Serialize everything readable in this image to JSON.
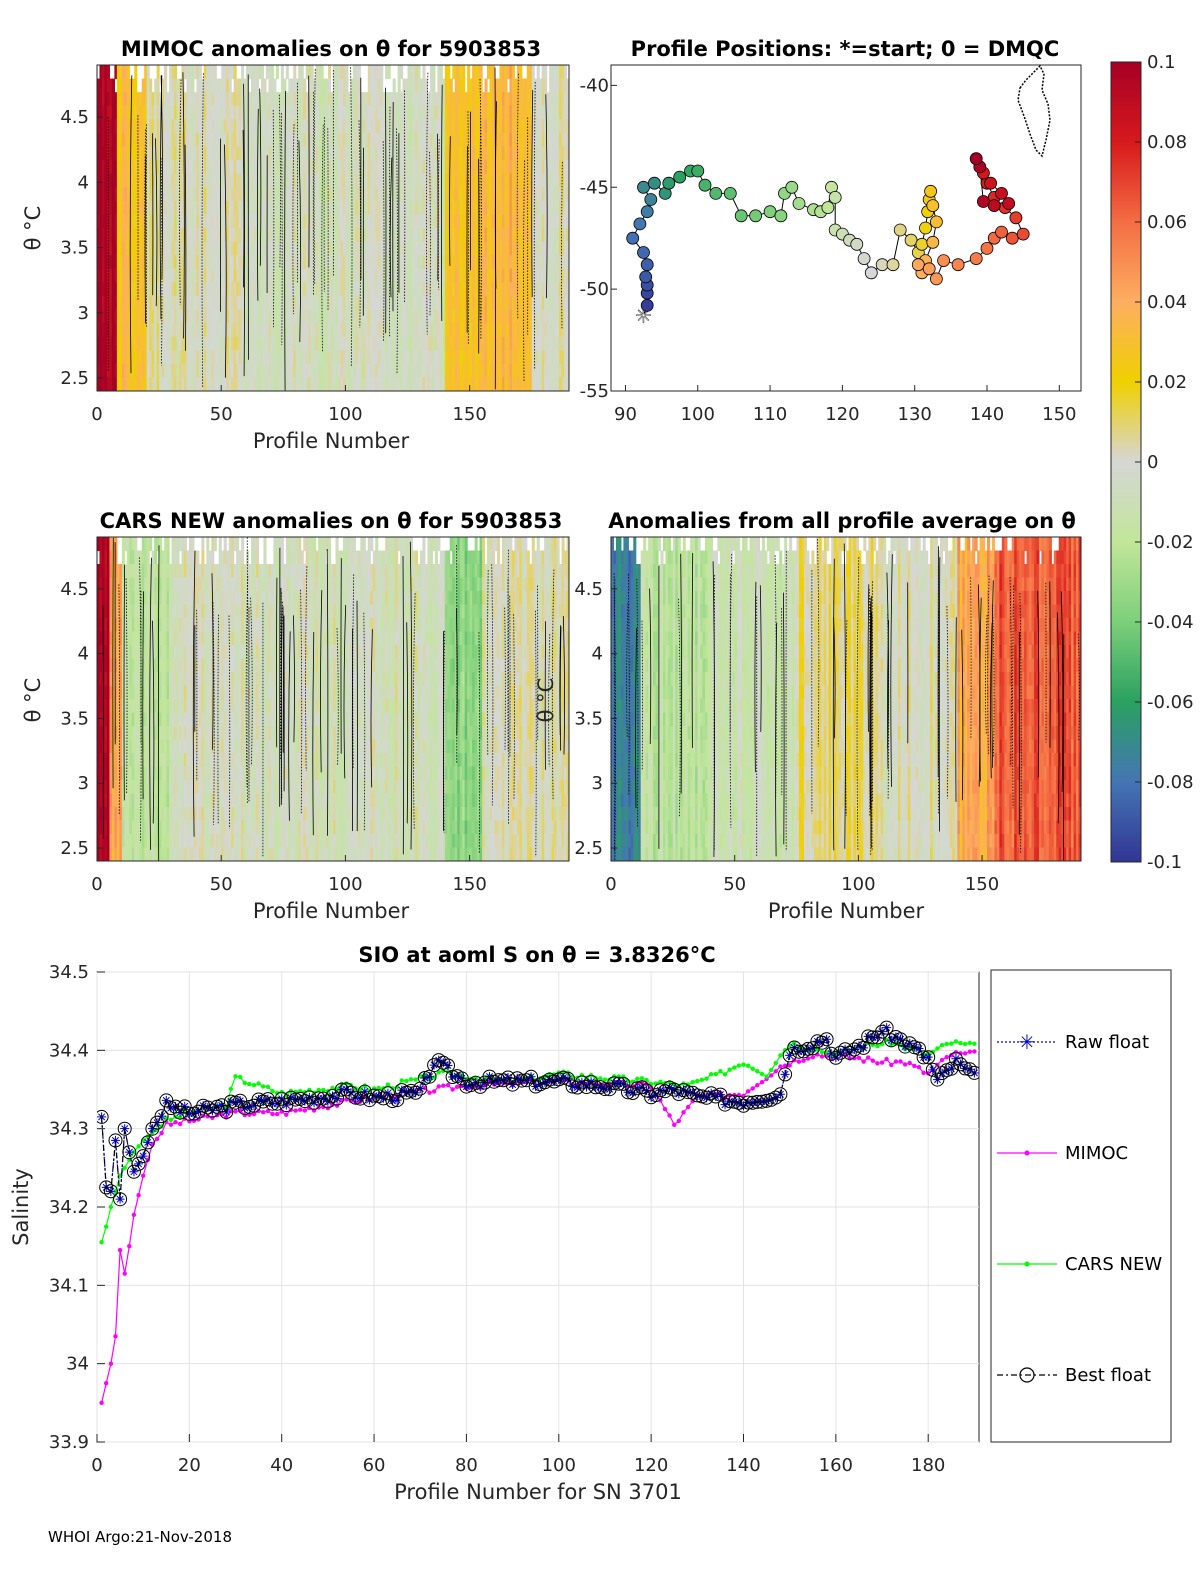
{
  "footer": "WHOI Argo:21-Nov-2018",
  "colors": {
    "raw": "#0000cc",
    "mimoc": "#ff00ff",
    "cars": "#00ff00",
    "best": "#000000",
    "zero": "#d6d6d6"
  },
  "colorbar": {
    "ticks": [
      "0.1",
      "0.08",
      "0.06",
      "0.04",
      "0.02",
      "0",
      "-0.02",
      "-0.04",
      "-0.06",
      "-0.08",
      "-0.1"
    ],
    "range": [
      -0.1,
      0.1
    ]
  },
  "chart_data": [
    {
      "id": "mimoc",
      "type": "heatmap",
      "title": "MIMOC anomalies on θ  for 5903853",
      "xlabel": "Profile Number",
      "ylabel": "θ °C",
      "xlim": [
        0,
        190
      ],
      "ylim": [
        2.4,
        4.9
      ],
      "xticks": [
        "0",
        "50",
        "100",
        "150"
      ],
      "yticks": [
        "2.5",
        "3",
        "3.5",
        "4",
        "4.5"
      ],
      "ytick_values": [
        2.5,
        3,
        3.5,
        4,
        4.5
      ],
      "xtick_values": [
        0,
        50,
        100,
        150
      ],
      "field": [
        {
          "from": 0,
          "to": 8,
          "value": 0.1
        },
        {
          "from": 8,
          "to": 20,
          "value": 0.03
        },
        {
          "from": 20,
          "to": 60,
          "value": 0.0
        },
        {
          "from": 60,
          "to": 140,
          "value": -0.005
        },
        {
          "from": 140,
          "to": 155,
          "value": 0.03
        },
        {
          "from": 155,
          "to": 175,
          "value": 0.035
        },
        {
          "from": 175,
          "to": 190,
          "value": 0.0
        }
      ]
    },
    {
      "id": "positions",
      "type": "scatter",
      "title": "Profile Positions: *=start; 0 = DMQC",
      "xlim": [
        88,
        153
      ],
      "ylim": [
        -55,
        -39
      ],
      "xticks": [
        "90",
        "100",
        "110",
        "120",
        "130",
        "140",
        "150"
      ],
      "xtick_values": [
        90,
        100,
        110,
        120,
        130,
        140,
        150
      ],
      "yticks": [
        "-40",
        "-45",
        "-50",
        "-55"
      ],
      "ytick_values": [
        -40,
        -45,
        -50,
        -55
      ],
      "track": [
        [
          92.5,
          -51.3
        ],
        [
          93,
          -50.8
        ],
        [
          93,
          -50.2
        ],
        [
          93,
          -49.8
        ],
        [
          92.8,
          -49.4
        ],
        [
          93,
          -48.8
        ],
        [
          92.5,
          -48.2
        ],
        [
          91,
          -47.5
        ],
        [
          92,
          -46.8
        ],
        [
          93,
          -46.2
        ],
        [
          93.5,
          -45.6
        ],
        [
          92.5,
          -45.0
        ],
        [
          94,
          -44.8
        ],
        [
          95.5,
          -45.3
        ],
        [
          96,
          -44.8
        ],
        [
          97.5,
          -44.5
        ],
        [
          99,
          -44.2
        ],
        [
          100,
          -44.2
        ],
        [
          101,
          -44.9
        ],
        [
          102.5,
          -45.3
        ],
        [
          104.5,
          -45.3
        ],
        [
          106,
          -46.4
        ],
        [
          108,
          -46.4
        ],
        [
          110,
          -46.2
        ],
        [
          111.5,
          -46.4
        ],
        [
          112,
          -45.3
        ],
        [
          113,
          -45.0
        ],
        [
          114,
          -45.8
        ],
        [
          116,
          -46.1
        ],
        [
          117,
          -46.2
        ],
        [
          118,
          -46.0
        ],
        [
          118.5,
          -45.0
        ],
        [
          119,
          -45.5
        ],
        [
          119,
          -47.1
        ],
        [
          120,
          -47.3
        ],
        [
          121,
          -47.6
        ],
        [
          122,
          -47.8
        ],
        [
          123,
          -48.5
        ],
        [
          124,
          -49.2
        ],
        [
          125.5,
          -48.8
        ],
        [
          127,
          -48.8
        ],
        [
          128,
          -47.1
        ],
        [
          129.5,
          -47.6
        ],
        [
          130.5,
          -48.2
        ],
        [
          131,
          -47.8
        ],
        [
          131.5,
          -47.0
        ],
        [
          131.8,
          -46.2
        ],
        [
          132,
          -45.6
        ],
        [
          132.2,
          -45.2
        ],
        [
          132.5,
          -45.9
        ],
        [
          133,
          -46.7
        ],
        [
          132.5,
          -47.7
        ],
        [
          131.5,
          -48.6
        ],
        [
          131,
          -49.2
        ],
        [
          130.5,
          -48.8
        ],
        [
          132,
          -49.0
        ],
        [
          133,
          -49.5
        ],
        [
          134,
          -48.6
        ],
        [
          136,
          -48.8
        ],
        [
          138.5,
          -48.5
        ],
        [
          140,
          -48.0
        ],
        [
          141,
          -47.5
        ],
        [
          142,
          -47.2
        ],
        [
          143.5,
          -47.5
        ],
        [
          145,
          -47.3
        ],
        [
          144,
          -46.5
        ],
        [
          142.5,
          -46.0
        ],
        [
          141,
          -45.5
        ],
        [
          140,
          -44.8
        ],
        [
          139.5,
          -44.3
        ],
        [
          140.5,
          -44.8
        ],
        [
          142,
          -45.3
        ],
        [
          143,
          -45.8
        ],
        [
          141,
          -45.9
        ],
        [
          139.5,
          -45.7
        ],
        [
          139,
          -44.0
        ],
        [
          138.5,
          -43.6
        ]
      ]
    },
    {
      "id": "cars",
      "type": "heatmap",
      "title": "CARS NEW anomalies on θ for 5903853",
      "xlabel": "Profile Number",
      "ylabel": "θ °C",
      "xlim": [
        0,
        190
      ],
      "ylim": [
        2.4,
        4.9
      ],
      "xticks": [
        "0",
        "50",
        "100",
        "150"
      ],
      "xtick_values": [
        0,
        50,
        100,
        150
      ],
      "yticks": [
        "2.5",
        "3",
        "3.5",
        "4",
        "4.5"
      ],
      "ytick_values": [
        2.5,
        3,
        3.5,
        4,
        4.5
      ],
      "field": [
        {
          "from": 0,
          "to": 5,
          "value": 0.1
        },
        {
          "from": 5,
          "to": 10,
          "value": 0.04
        },
        {
          "from": 10,
          "to": 30,
          "value": -0.02
        },
        {
          "from": 30,
          "to": 140,
          "value": -0.005
        },
        {
          "from": 140,
          "to": 155,
          "value": -0.035
        },
        {
          "from": 155,
          "to": 190,
          "value": 0.0
        }
      ]
    },
    {
      "id": "average",
      "type": "heatmap",
      "title": "Anomalies from all profile average on θ",
      "xlabel": "Profile Number",
      "ylabel": "θ °C",
      "xlim": [
        0,
        190
      ],
      "ylim": [
        2.4,
        4.9
      ],
      "xticks": [
        "0",
        "50",
        "100",
        "150"
      ],
      "xtick_values": [
        0,
        50,
        100,
        150
      ],
      "yticks": [
        "2.5",
        "3",
        "3.5",
        "4",
        "4.5"
      ],
      "ytick_values": [
        2.5,
        3,
        3.5,
        4,
        4.5
      ],
      "field": [
        {
          "from": 0,
          "to": 12,
          "value": -0.075
        },
        {
          "from": 12,
          "to": 40,
          "value": -0.02
        },
        {
          "from": 40,
          "to": 75,
          "value": -0.01
        },
        {
          "from": 75,
          "to": 110,
          "value": 0.01
        },
        {
          "from": 110,
          "to": 140,
          "value": 0.0
        },
        {
          "from": 140,
          "to": 155,
          "value": 0.04
        },
        {
          "from": 155,
          "to": 190,
          "value": 0.065
        }
      ]
    },
    {
      "id": "salinity",
      "type": "line",
      "title": "SIO at aoml S on θ = 3.8326°C",
      "xlabel": "Profile Number for SN 3701",
      "ylabel": "Salinity",
      "xlim": [
        0,
        191
      ],
      "ylim": [
        33.9,
        34.5
      ],
      "xticks": [
        "0",
        "20",
        "40",
        "60",
        "80",
        "100",
        "120",
        "140",
        "160",
        "180"
      ],
      "xtick_values": [
        0,
        20,
        40,
        60,
        80,
        100,
        120,
        140,
        160,
        180
      ],
      "yticks": [
        "33.9",
        "34",
        "34.1",
        "34.2",
        "34.3",
        "34.4",
        "34.5"
      ],
      "ytick_values": [
        33.9,
        34.0,
        34.1,
        34.2,
        34.3,
        34.4,
        34.5
      ],
      "legend": [
        "Raw float",
        "MIMOC",
        "CARS NEW",
        "Best float"
      ],
      "series": [
        {
          "name": "Raw float",
          "knots": [
            [
              1,
              34.315
            ],
            [
              2,
              34.225
            ],
            [
              3,
              34.22
            ],
            [
              4,
              34.285
            ],
            [
              5,
              34.21
            ],
            [
              6,
              34.3
            ],
            [
              7,
              34.27
            ],
            [
              8,
              34.245
            ],
            [
              10,
              34.265
            ],
            [
              12,
              34.3
            ],
            [
              15,
              34.33
            ],
            [
              20,
              34.32
            ],
            [
              30,
              34.33
            ],
            [
              40,
              34.335
            ],
            [
              55,
              34.345
            ],
            [
              60,
              34.34
            ],
            [
              70,
              34.345
            ],
            [
              73,
              34.385
            ],
            [
              80,
              34.36
            ],
            [
              90,
              34.36
            ],
            [
              100,
              34.36
            ],
            [
              110,
              34.355
            ],
            [
              120,
              34.345
            ],
            [
              125,
              34.35
            ],
            [
              130,
              34.34
            ],
            [
              140,
              34.335
            ],
            [
              148,
              34.345
            ],
            [
              150,
              34.4
            ],
            [
              158,
              34.415
            ],
            [
              160,
              34.39
            ],
            [
              165,
              34.405
            ],
            [
              170,
              34.425
            ],
            [
              175,
              34.41
            ],
            [
              180,
              34.39
            ],
            [
              182,
              34.36
            ],
            [
              186,
              34.385
            ],
            [
              190,
              34.365
            ]
          ]
        },
        {
          "name": "MIMOC",
          "knots": [
            [
              1,
              33.95
            ],
            [
              2,
              33.975
            ],
            [
              3,
              34.0
            ],
            [
              4,
              34.035
            ],
            [
              5,
              34.145
            ],
            [
              6,
              34.115
            ],
            [
              7,
              34.15
            ],
            [
              8,
              34.19
            ],
            [
              10,
              34.24
            ],
            [
              12,
              34.28
            ],
            [
              15,
              34.305
            ],
            [
              20,
              34.31
            ],
            [
              30,
              34.32
            ],
            [
              40,
              34.32
            ],
            [
              55,
              34.335
            ],
            [
              60,
              34.34
            ],
            [
              80,
              34.355
            ],
            [
              100,
              34.36
            ],
            [
              120,
              34.355
            ],
            [
              125,
              34.305
            ],
            [
              130,
              34.34
            ],
            [
              140,
              34.345
            ],
            [
              148,
              34.38
            ],
            [
              155,
              34.395
            ],
            [
              165,
              34.39
            ],
            [
              170,
              34.385
            ],
            [
              175,
              34.385
            ],
            [
              180,
              34.37
            ],
            [
              185,
              34.395
            ],
            [
              190,
              34.395
            ]
          ]
        },
        {
          "name": "CARS NEW",
          "knots": [
            [
              1,
              34.155
            ],
            [
              2,
              34.175
            ],
            [
              3,
              34.2
            ],
            [
              5,
              34.24
            ],
            [
              8,
              34.27
            ],
            [
              10,
              34.285
            ],
            [
              15,
              34.31
            ],
            [
              20,
              34.32
            ],
            [
              28,
              34.33
            ],
            [
              30,
              34.365
            ],
            [
              40,
              34.345
            ],
            [
              55,
              34.355
            ],
            [
              60,
              34.35
            ],
            [
              75,
              34.37
            ],
            [
              90,
              34.36
            ],
            [
              100,
              34.37
            ],
            [
              110,
              34.365
            ],
            [
              120,
              34.36
            ],
            [
              128,
              34.355
            ],
            [
              135,
              34.37
            ],
            [
              140,
              34.385
            ],
            [
              145,
              34.37
            ],
            [
              150,
              34.41
            ],
            [
              160,
              34.395
            ],
            [
              165,
              34.405
            ],
            [
              172,
              34.41
            ],
            [
              180,
              34.395
            ],
            [
              185,
              34.41
            ],
            [
              190,
              34.405
            ]
          ]
        },
        {
          "name": "Best float",
          "knots": [
            [
              1,
              34.315
            ],
            [
              2,
              34.225
            ],
            [
              3,
              34.22
            ],
            [
              4,
              34.285
            ],
            [
              5,
              34.21
            ],
            [
              6,
              34.3
            ],
            [
              7,
              34.27
            ],
            [
              8,
              34.245
            ],
            [
              10,
              34.265
            ],
            [
              12,
              34.3
            ],
            [
              15,
              34.33
            ],
            [
              20,
              34.32
            ],
            [
              30,
              34.33
            ],
            [
              40,
              34.335
            ],
            [
              55,
              34.345
            ],
            [
              60,
              34.34
            ],
            [
              70,
              34.345
            ],
            [
              73,
              34.385
            ],
            [
              80,
              34.36
            ],
            [
              90,
              34.36
            ],
            [
              100,
              34.36
            ],
            [
              110,
              34.355
            ],
            [
              120,
              34.345
            ],
            [
              125,
              34.35
            ],
            [
              130,
              34.34
            ],
            [
              140,
              34.335
            ],
            [
              148,
              34.345
            ],
            [
              150,
              34.4
            ],
            [
              158,
              34.415
            ],
            [
              160,
              34.39
            ],
            [
              165,
              34.405
            ],
            [
              170,
              34.425
            ],
            [
              175,
              34.41
            ],
            [
              180,
              34.39
            ],
            [
              182,
              34.36
            ],
            [
              186,
              34.385
            ],
            [
              190,
              34.365
            ]
          ]
        }
      ]
    }
  ]
}
